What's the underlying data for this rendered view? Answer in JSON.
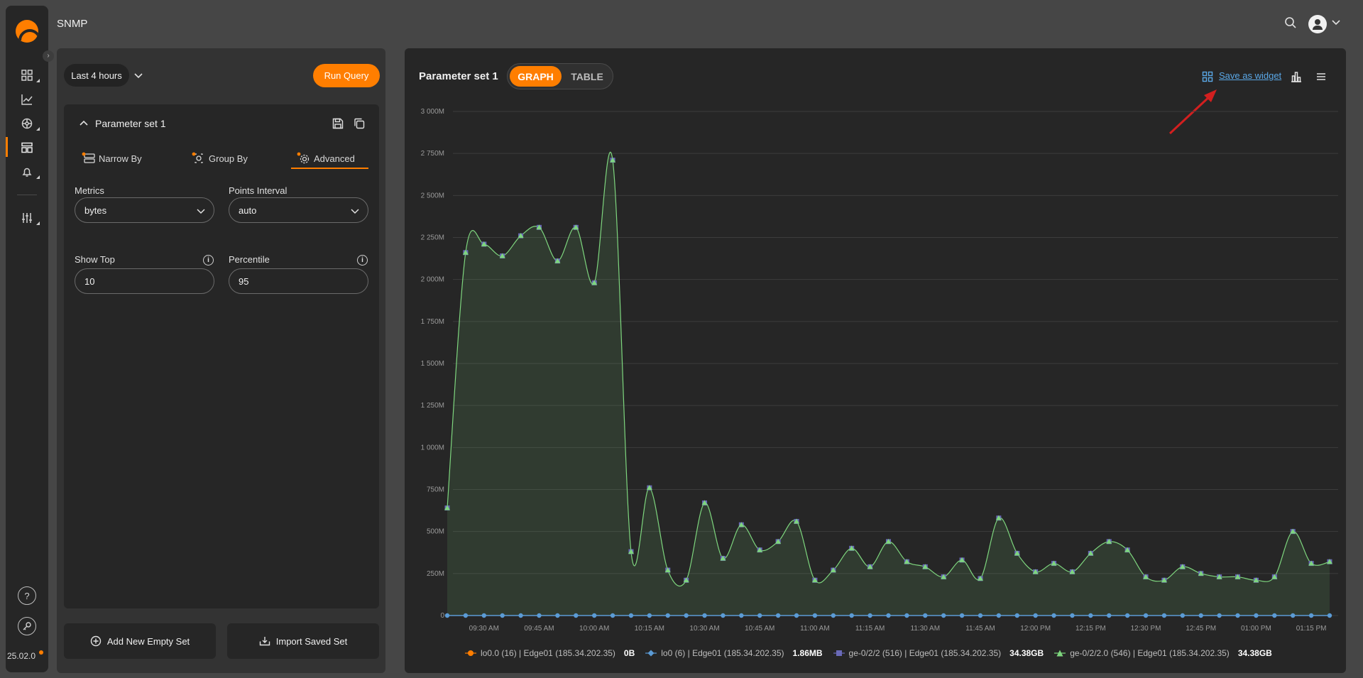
{
  "app": {
    "title": "SNMP",
    "version": "25.02.0"
  },
  "rail": {
    "items": [
      {
        "name": "dashboards-icon"
      },
      {
        "name": "charts-icon"
      },
      {
        "name": "network-icon"
      },
      {
        "name": "reports-icon"
      },
      {
        "name": "alerts-icon"
      },
      {
        "name": "settings-sliders-icon"
      }
    ]
  },
  "query": {
    "time_range": "Last 4 hours",
    "run_label": "Run Query"
  },
  "parameter_set": {
    "title": "Parameter set 1",
    "tabs": [
      "Narrow By",
      "Group By",
      "Advanced"
    ],
    "active_tab": "Advanced",
    "metrics_label": "Metrics",
    "metrics_value": "bytes",
    "points_interval_label": "Points Interval",
    "points_interval_value": "auto",
    "show_top_label": "Show Top",
    "show_top_value": "10",
    "percentile_label": "Percentile",
    "percentile_value": "95"
  },
  "buttons": {
    "add_set": "Add New Empty Set",
    "import_set": "Import Saved Set"
  },
  "panel": {
    "title": "Parameter set 1",
    "view_graph": "GRAPH",
    "view_table": "TABLE",
    "save_widget": "Save as widget"
  },
  "colors": {
    "accent": "#ff7e00",
    "series_green": "#7ed67e",
    "series_blue": "#5b9bd5",
    "link": "#5aa7e6",
    "annotation_arrow": "#d21f1f"
  },
  "chart_data": {
    "type": "area",
    "ylim": [
      0,
      3000
    ],
    "y_ticks": [
      "0",
      "250M",
      "500M",
      "750M",
      "1 000M",
      "1 250M",
      "1 500M",
      "1 750M",
      "2 000M",
      "2 250M",
      "2 500M",
      "2 750M",
      "3 000M"
    ],
    "x_ticks": [
      "09:30 AM",
      "09:45 AM",
      "10:00 AM",
      "10:15 AM",
      "10:30 AM",
      "10:45 AM",
      "11:00 AM",
      "11:15 AM",
      "11:30 AM",
      "11:45 AM",
      "12:00 PM",
      "12:15 PM",
      "12:30 PM",
      "12:45 PM",
      "01:00 PM",
      "01:15 PM"
    ],
    "grid": true,
    "legend_position": "bottom",
    "series": [
      {
        "name": "lo0.0 (16) | Edge01 (185.34.202.35)",
        "summary": "0B",
        "marker": "circle",
        "color": "#ff7e00"
      },
      {
        "name": "lo0 (6) | Edge01 (185.34.202.35)",
        "summary": "1.86MB",
        "marker": "diamond",
        "color": "#5b9bd5"
      },
      {
        "name": "ge-0/2/2 (516) | Edge01 (185.34.202.35)",
        "summary": "34.38GB",
        "marker": "square",
        "color": "#6a6ab8"
      },
      {
        "name": "ge-0/2/2.0 (546) | Edge01 (185.34.202.35)",
        "summary": "34.38GB",
        "marker": "triangle",
        "color": "#7ed67e"
      }
    ],
    "values": [
      640,
      2160,
      2210,
      2140,
      2260,
      2310,
      2110,
      2310,
      1980,
      2710,
      380,
      760,
      270,
      210,
      670,
      340,
      540,
      390,
      440,
      560,
      210,
      270,
      400,
      290,
      440,
      320,
      290,
      230,
      330,
      220,
      580,
      370,
      260,
      310,
      260,
      370,
      440,
      390,
      230,
      210,
      290,
      250,
      230,
      230,
      210,
      230,
      500,
      310,
      320
    ],
    "baseline_values_note": "",
    "baseline": 0
  }
}
